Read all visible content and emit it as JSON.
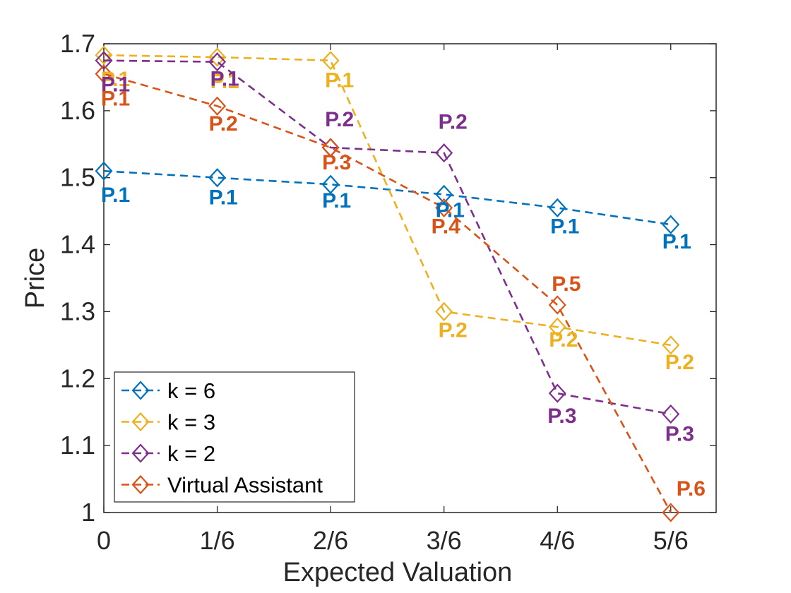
{
  "chart_data": {
    "type": "line",
    "title": "",
    "xlabel": "Expected Valuation",
    "ylabel": "Price",
    "categories": [
      "0",
      "1/6",
      "2/6",
      "3/6",
      "4/6",
      "5/6"
    ],
    "x": [
      0,
      0.1667,
      0.3333,
      0.5,
      0.6667,
      0.8333
    ],
    "xlim": [
      0,
      0.9
    ],
    "ylim": [
      1,
      1.7
    ],
    "yticks": [
      "1",
      "1.1",
      "1.2",
      "1.3",
      "1.4",
      "1.5",
      "1.6",
      "1.7"
    ],
    "grid": false,
    "legend_position": "bottom-left",
    "series": [
      {
        "name": "k = 6",
        "color": "#0072BD",
        "values": [
          1.51,
          1.5,
          1.49,
          1.475,
          1.455,
          1.43
        ],
        "labels": [
          "P.1",
          "P.1",
          "P.1",
          "P.1",
          "P.1",
          "P.1"
        ]
      },
      {
        "name": "k = 3",
        "color": "#EDB120",
        "values": [
          1.683,
          1.68,
          1.675,
          1.3,
          1.277,
          1.25
        ],
        "labels": [
          "P.1",
          "P.1",
          "P.1",
          "P.2",
          "P.2",
          "P.2"
        ]
      },
      {
        "name": "k = 2",
        "color": "#7E2F8E",
        "values": [
          1.675,
          1.673,
          1.545,
          1.537,
          1.178,
          1.147
        ],
        "labels": [
          "P.1",
          "P.1",
          "P.2",
          "P.2",
          "P.3",
          "P.3"
        ]
      },
      {
        "name": "Virtual Assistant",
        "color": "#D95319",
        "values": [
          1.655,
          1.607,
          1.545,
          1.455,
          1.31,
          1.0
        ],
        "labels": [
          "P.1",
          "P.2",
          "P.3",
          "P.4",
          "P.5",
          "P.6"
        ]
      }
    ]
  }
}
